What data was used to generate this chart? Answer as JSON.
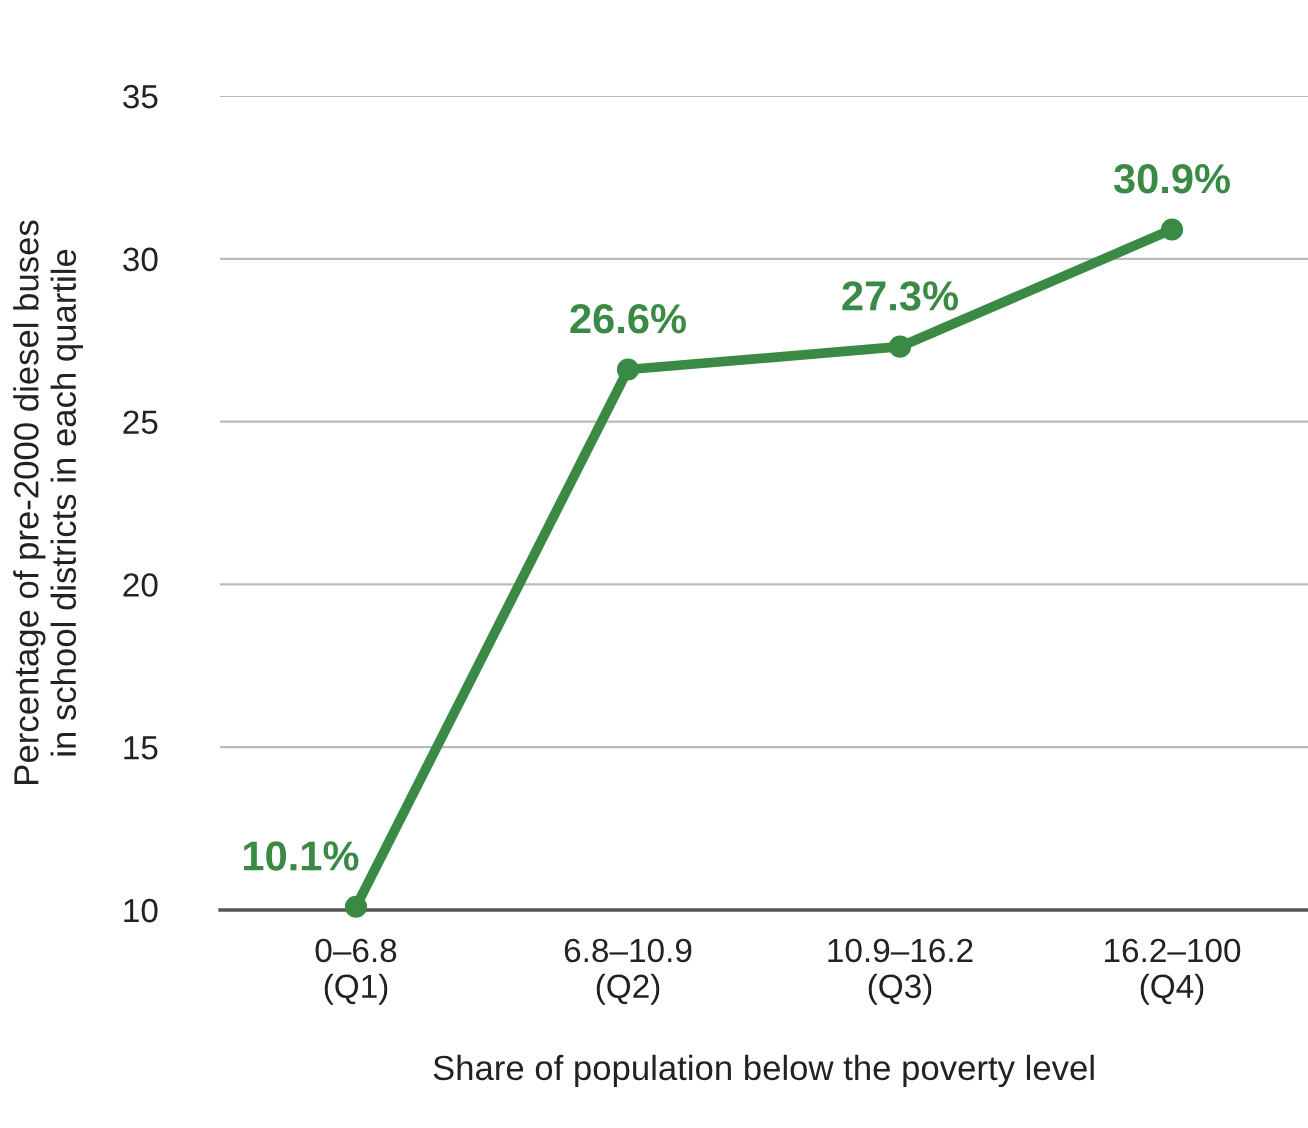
{
  "chart_data": {
    "type": "line",
    "xlabel": "Share of population below the poverty level",
    "ylabel": "Percentage of pre-2000 diesel buses\nin school districts in each quartile",
    "categories": [
      "0–6.8\n(Q1)",
      "6.8–10.9\n(Q2)",
      "10.9–16.2\n(Q3)",
      "16.2–100\n(Q4)"
    ],
    "series": [
      {
        "color": "#3a8a45",
        "values": [
          10.1,
          26.6,
          27.3,
          30.9
        ],
        "value_labels": [
          "10.1%",
          "26.6%",
          "27.3%",
          "30.9%"
        ]
      }
    ],
    "ylim": [
      10,
      35
    ],
    "yticks": [
      10,
      15,
      20,
      25,
      30,
      35
    ],
    "grid": "y",
    "legend": false,
    "marker": "circle",
    "line_style": "solid"
  }
}
